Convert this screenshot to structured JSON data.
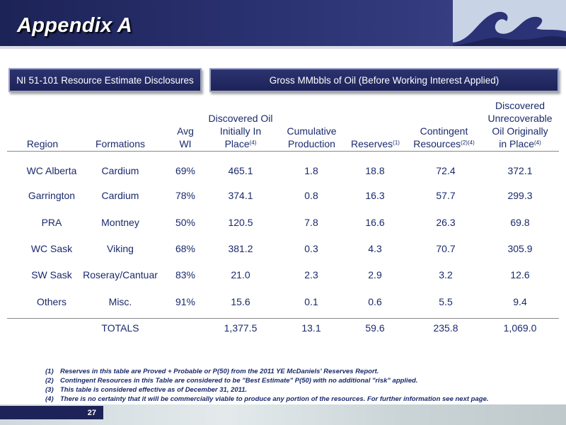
{
  "header": {
    "title": "Appendix A"
  },
  "tabs": {
    "left": "NI 51-101 Resource Estimate Disclosures",
    "right": "Gross MMbbls of Oil (Before Working Interest Applied)"
  },
  "columns": {
    "region": "Region",
    "formations": "Formations",
    "wi_1": "Avg",
    "wi_2": "WI",
    "doiip_1": "Discovered Oil",
    "doiip_2": "Initially In",
    "doiip_3": "Place",
    "doiip_sup": "(4)",
    "cum_1": "Cumulative",
    "cum_2": "Production",
    "reserves": "Reserves",
    "reserves_sup": "(1)",
    "cont_1": "Contingent",
    "cont_2": "Resources",
    "cont_sup": "(2)(4)",
    "unrec_1": "Discovered",
    "unrec_2": "Unrecoverable",
    "unrec_3": "Oil Originally",
    "unrec_4": "in Place",
    "unrec_sup": "(4)"
  },
  "rows": [
    {
      "region": "WC Alberta",
      "formation": "Cardium",
      "wi": "69%",
      "doiip": "465.1",
      "cum": "1.8",
      "reserves": "18.8",
      "contingent": "72.4",
      "unrecoverable": "372.1"
    },
    {
      "region": "Garrington",
      "formation": "Cardium",
      "wi": "78%",
      "doiip": "374.1",
      "cum": "0.8",
      "reserves": "16.3",
      "contingent": "57.7",
      "unrecoverable": "299.3"
    },
    {
      "region": "PRA",
      "formation": "Montney",
      "wi": "50%",
      "doiip": "120.5",
      "cum": "7.8",
      "reserves": "16.6",
      "contingent": "26.3",
      "unrecoverable": "69.8"
    },
    {
      "region": "WC Sask",
      "formation": "Viking",
      "wi": "68%",
      "doiip": "381.2",
      "cum": "0.3",
      "reserves": "4.3",
      "contingent": "70.7",
      "unrecoverable": "305.9"
    },
    {
      "region": "SW Sask",
      "formation": "Roseray/Cantuar",
      "wi": "83%",
      "doiip": "21.0",
      "cum": "2.3",
      "reserves": "2.9",
      "contingent": "3.2",
      "unrecoverable": "12.6"
    },
    {
      "region": "Others",
      "formation": "Misc.",
      "wi": "91%",
      "doiip": "15.6",
      "cum": "0.1",
      "reserves": "0.6",
      "contingent": "5.5",
      "unrecoverable": "9.4"
    }
  ],
  "totals": {
    "label": "TOTALS",
    "doiip": "1,377.5",
    "cum": "13.1",
    "reserves": "59.6",
    "contingent": "235.8",
    "unrecoverable": "1,069.0"
  },
  "footnotes": [
    {
      "num": "(1)",
      "text": "Reserves in this table are Proved + Probable or P(50) from the 2011 YE McDaniels' Reserves Report."
    },
    {
      "num": "(2)",
      "text": "Contingent Resources in this Table are considered to be \"Best Estimate\" P(50) with no additional \"risk\" applied."
    },
    {
      "num": "(3)",
      "text": "This table is considered effective as of December 31, 2011."
    },
    {
      "num": "(4)",
      "text": "There is no certainty that it will be commercially viable to produce any portion of the resources.  For further information see next page."
    }
  ],
  "footer": {
    "page_number": "27"
  },
  "colors": {
    "navy": "#1d2358",
    "text": "#1a2a6c",
    "logo_bg": "#c9d3e6"
  }
}
